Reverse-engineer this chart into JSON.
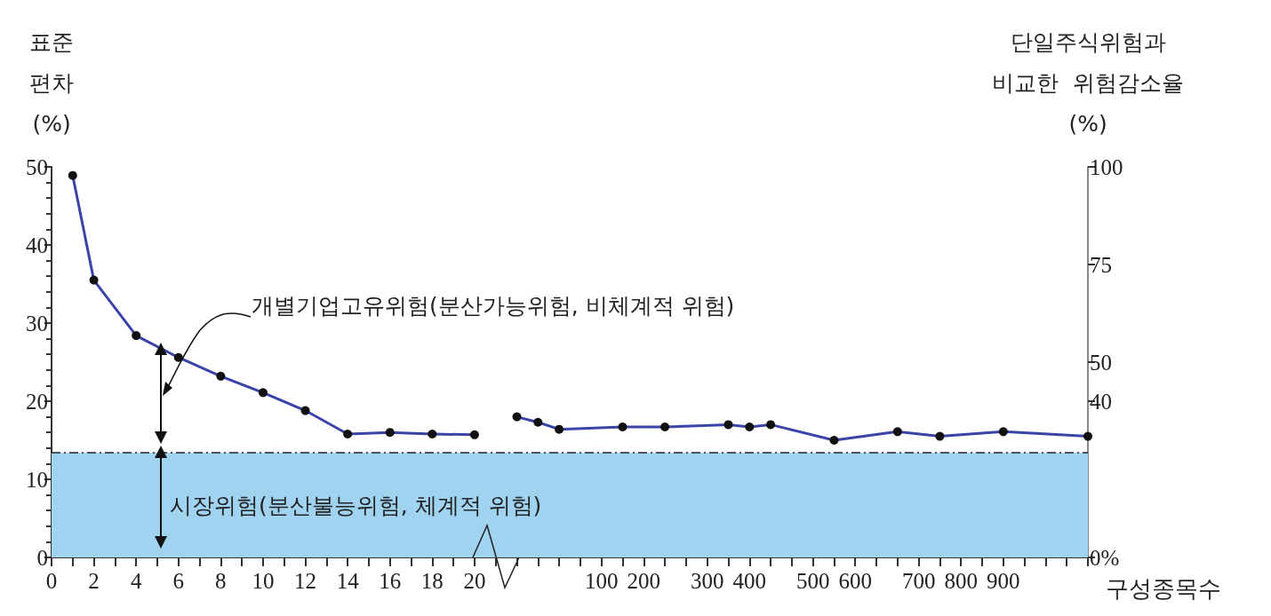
{
  "chart_data": {
    "type": "line",
    "ylabel": "표준\n편차\n(%)",
    "y2label": "단일주식위험과\n비교한  위험감소율\n(%)",
    "xlabel": "구성종목수",
    "categories": [
      "0",
      null,
      "2",
      null,
      "4",
      null,
      "6",
      null,
      "8",
      null,
      "10",
      null,
      "12",
      null,
      "14",
      null,
      "16",
      null,
      "18",
      null,
      "20",
      null,
      null,
      null,
      null,
      null,
      "100",
      null,
      "200",
      null,
      null,
      "300",
      null,
      "400",
      null,
      null,
      "500",
      null,
      "600",
      null,
      null,
      "700",
      null,
      "800",
      null,
      "900",
      null,
      null,
      null,
      null
    ],
    "series": [
      {
        "color": "#3a44a8",
        "values": [
          null,
          48.9,
          35.5,
          null,
          28.4,
          null,
          25.6,
          null,
          23.2,
          null,
          21.1,
          null,
          18.8,
          null,
          15.8,
          null,
          16.0,
          null,
          15.8,
          null,
          15.7,
          null,
          null,
          null,
          null,
          null,
          null,
          null,
          null,
          null,
          null,
          null,
          null,
          null,
          null,
          null,
          null,
          null,
          null,
          null,
          null,
          null,
          null,
          null,
          null,
          null,
          null,
          null,
          null,
          null
        ]
      },
      {
        "color": "#3a44a8",
        "values": [
          null,
          null,
          null,
          null,
          null,
          null,
          null,
          null,
          null,
          null,
          null,
          null,
          null,
          null,
          null,
          null,
          null,
          null,
          null,
          null,
          null,
          null,
          18.0,
          17.3,
          16.4,
          null,
          null,
          16.7,
          null,
          16.7,
          null,
          null,
          17.0,
          16.7,
          17.0,
          null,
          null,
          15.0,
          null,
          null,
          16.1,
          null,
          15.5,
          null,
          null,
          16.1,
          null,
          null,
          null,
          15.5
        ]
      }
    ],
    "ylim": [
      0,
      50
    ],
    "yticks": [
      0,
      10,
      20,
      30,
      40,
      50
    ],
    "y2lim": [
      0,
      100
    ],
    "y2ticks": [
      {
        "value": 0,
        "label": "0%"
      },
      40,
      50,
      75,
      100
    ],
    "marker": "circle",
    "bands": [
      {
        "axis": "y",
        "from": 0,
        "to": 13.4,
        "label": "시장위험(분산불능위험, 체계적 위험)",
        "color": "#9fd3f0"
      }
    ],
    "ref_lines": [
      {
        "axis": "y",
        "value": 13.4,
        "color": "#222222",
        "line_style": "dashed"
      }
    ],
    "annotations": [
      "개별기업고유위험(분산가능위험, 비체계적 위험)"
    ]
  }
}
